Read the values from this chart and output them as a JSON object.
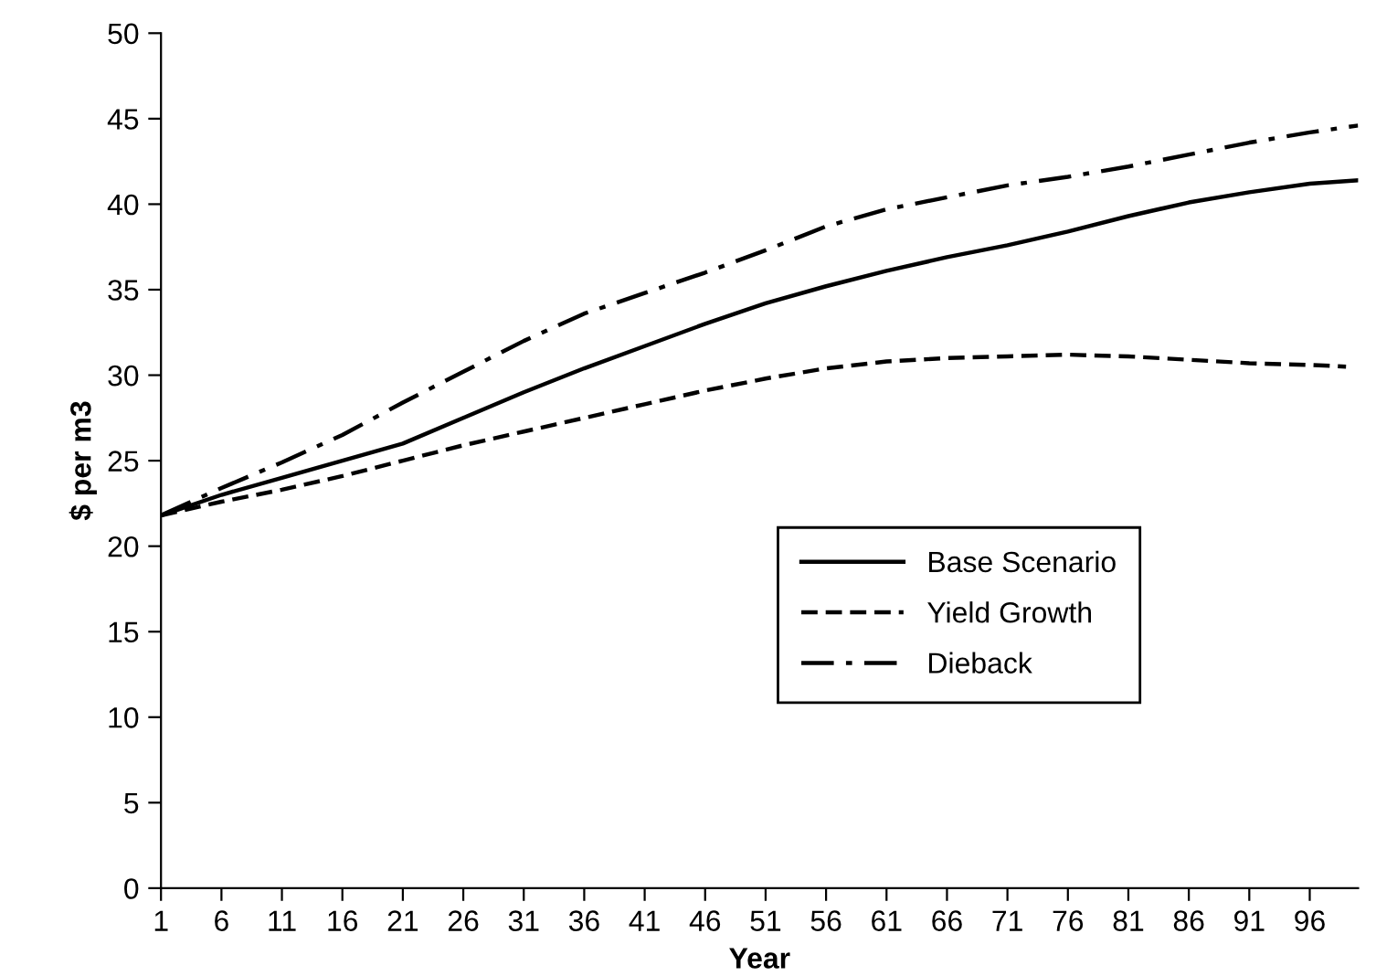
{
  "chart_data": {
    "type": "line",
    "xlabel": "Year",
    "ylabel": "$ per m3",
    "xlim": [
      1,
      100
    ],
    "xticks": [
      1,
      6,
      11,
      16,
      21,
      26,
      31,
      36,
      41,
      46,
      51,
      56,
      61,
      66,
      71,
      76,
      81,
      86,
      91,
      96
    ],
    "ylim": [
      0,
      50
    ],
    "yticks": [
      0,
      5,
      10,
      15,
      20,
      25,
      30,
      35,
      40,
      45,
      50
    ],
    "legend": "lower right",
    "grid": false,
    "marker": "none",
    "series": [
      {
        "name": "Base Scenario",
        "color": "#000000",
        "line_style": "solid",
        "x": [
          1,
          6,
          11,
          16,
          21,
          26,
          31,
          36,
          41,
          46,
          51,
          56,
          61,
          66,
          71,
          76,
          81,
          86,
          91,
          96,
          100
        ],
        "values": [
          21.8,
          23,
          24,
          25,
          26,
          27.5,
          29,
          30.4,
          31.7,
          33,
          34.2,
          35.2,
          36.1,
          36.9,
          37.6,
          38.4,
          39.3,
          40.1,
          40.7,
          41.2,
          41.4
        ]
      },
      {
        "name": "Yield Growth",
        "color": "#000000",
        "line_style": "dashed",
        "x": [
          1,
          6,
          11,
          16,
          21,
          26,
          31,
          36,
          41,
          46,
          51,
          56,
          61,
          66,
          71,
          76,
          81,
          86,
          91,
          96,
          99
        ],
        "values": [
          21.8,
          22.6,
          23.3,
          24.1,
          25,
          25.9,
          26.7,
          27.5,
          28.3,
          29.1,
          29.8,
          30.4,
          30.8,
          31,
          31.1,
          31.2,
          31.1,
          30.9,
          30.7,
          30.6,
          30.5
        ]
      },
      {
        "name": "Dieback",
        "color": "#000000",
        "line_style": "dashdot",
        "x": [
          1,
          6,
          11,
          16,
          21,
          26,
          31,
          36,
          41,
          46,
          51,
          56,
          61,
          66,
          71,
          76,
          81,
          86,
          91,
          96,
          100
        ],
        "values": [
          21.8,
          23.4,
          24.9,
          26.5,
          28.4,
          30.2,
          32,
          33.6,
          34.8,
          36,
          37.3,
          38.7,
          39.7,
          40.4,
          41.1,
          41.6,
          42.2,
          42.9,
          43.6,
          44.2,
          44.6
        ]
      }
    ]
  }
}
